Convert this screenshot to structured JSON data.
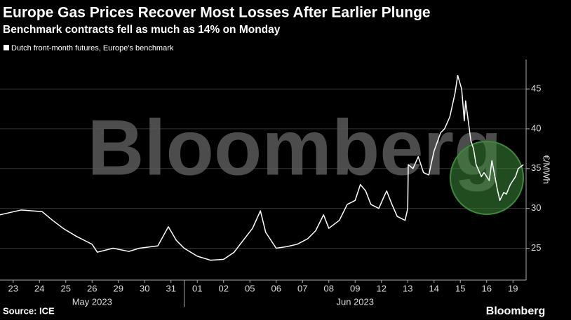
{
  "chart_data": {
    "type": "line",
    "title": "Europe Gas Prices Recover Most Losses After Earlier Plunge",
    "subtitle": "Benchmark contracts fell as much as 14% on Monday",
    "y_label": "€/MWh",
    "watermark": "Bloomberg",
    "source": "Source: ICE",
    "logo": "Bloomberg",
    "month_labels": [
      {
        "value": 3,
        "label": "May 2023"
      },
      {
        "value": 13,
        "label": "Jun 2023"
      }
    ],
    "x": [
      -0.5,
      0.3,
      1.1,
      1.5,
      1.9,
      2.4,
      3.0,
      3.2,
      3.8,
      4.4,
      4.8,
      5.5,
      5.9,
      6.2,
      6.5,
      7.0,
      7.5,
      8.0,
      8.4,
      8.7,
      9.1,
      9.4,
      9.6,
      10.0,
      10.4,
      10.8,
      11.2,
      11.5,
      11.8,
      12.0,
      12.4,
      12.7,
      13.0,
      13.2,
      13.4,
      13.6,
      13.9,
      14.1,
      14.2,
      14.4,
      14.6,
      14.9,
      15.0,
      15.02,
      15.2,
      15.4,
      15.6,
      15.8,
      16.0,
      16.25,
      16.4,
      16.6,
      16.8,
      16.9,
      17.05,
      17.15,
      17.2,
      17.4,
      17.5,
      17.6,
      17.8,
      17.9,
      18.1,
      18.2,
      18.4,
      18.5,
      18.65,
      18.75,
      18.9,
      19.1,
      19.2,
      19.4
    ],
    "series": [
      {
        "name": "Dutch front-month futures, Europe's benchmark",
        "color": "#ffffff",
        "values": [
          29.2,
          29.8,
          29.6,
          28.5,
          27.5,
          26.5,
          25.5,
          24.5,
          25.0,
          24.6,
          25.0,
          25.3,
          27.7,
          26.0,
          25.0,
          24.0,
          23.5,
          23.6,
          24.5,
          25.8,
          27.5,
          29.7,
          27.0,
          25.0,
          25.2,
          25.5,
          26.2,
          27.2,
          29.2,
          27.5,
          28.5,
          30.5,
          31.0,
          33.0,
          32.2,
          30.5,
          30.0,
          31.5,
          32.2,
          30.5,
          29.0,
          28.5,
          30.0,
          35.5,
          35.0,
          36.5,
          34.5,
          34.2,
          37.2,
          39.5,
          40.0,
          41.5,
          44.5,
          46.7,
          45.0,
          41.0,
          43.5,
          38.5,
          37.5,
          35.5,
          34.0,
          34.5,
          33.5,
          36.0,
          32.5,
          31.0,
          32.0,
          31.8,
          33.0,
          34.0,
          35.0,
          35.5
        ]
      }
    ],
    "xlim": [
      -0.5,
      19.5
    ],
    "xticks": [
      {
        "value": 0,
        "label": "23"
      },
      {
        "value": 1,
        "label": "24"
      },
      {
        "value": 2,
        "label": "25"
      },
      {
        "value": 3,
        "label": "26"
      },
      {
        "value": 4,
        "label": "29"
      },
      {
        "value": 5,
        "label": "30"
      },
      {
        "value": 6,
        "label": "31"
      },
      {
        "value": 7,
        "label": "01"
      },
      {
        "value": 8,
        "label": "02"
      },
      {
        "value": 9,
        "label": "05"
      },
      {
        "value": 10,
        "label": "06"
      },
      {
        "value": 11,
        "label": "07"
      },
      {
        "value": 12,
        "label": "08"
      },
      {
        "value": 13,
        "label": "09"
      },
      {
        "value": 14,
        "label": "12"
      },
      {
        "value": 15,
        "label": "13"
      },
      {
        "value": 16,
        "label": "14"
      },
      {
        "value": 17,
        "label": "15"
      },
      {
        "value": 18,
        "label": "16"
      },
      {
        "value": 19,
        "label": "19"
      }
    ],
    "ylim": [
      21,
      48.7
    ],
    "yticks": [
      25,
      30,
      35,
      40,
      45
    ],
    "grid": true
  }
}
